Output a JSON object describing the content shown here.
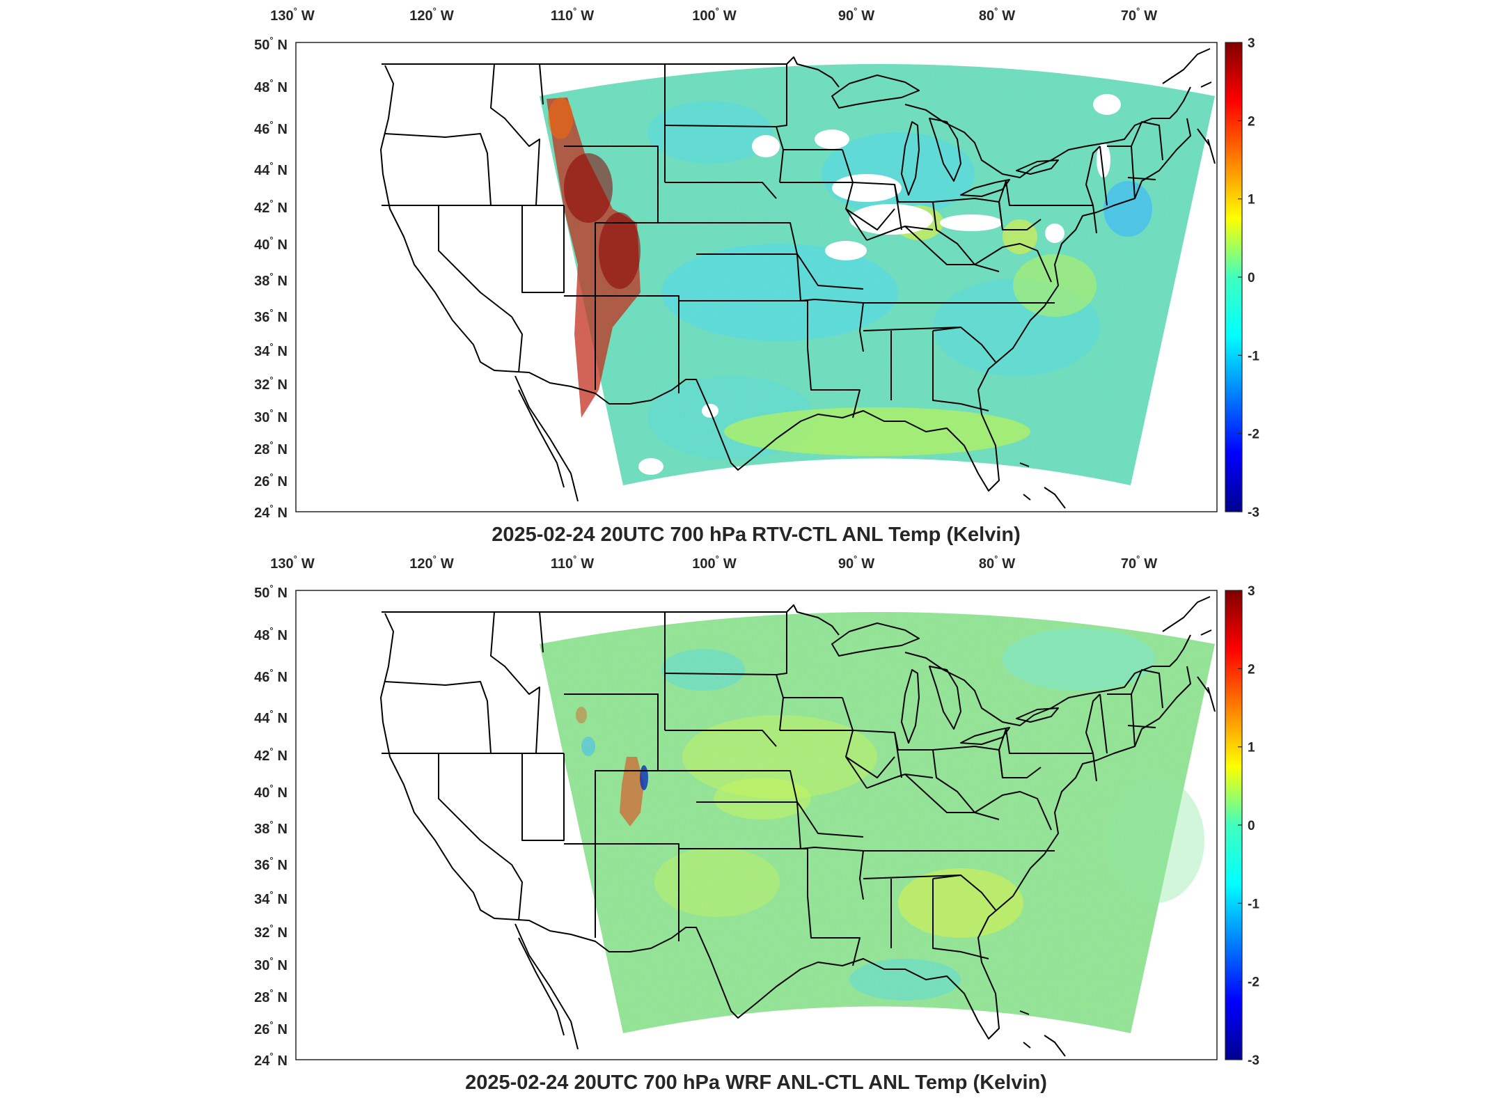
{
  "figure": {
    "panels": [
      {
        "id": "top",
        "title": "2025-02-24 20UTC 700 hPa RTV-CTL ANL Temp (Kelvin)",
        "colorbar": {
          "min": -3,
          "max": 3,
          "ticks": [
            "3",
            "2",
            "1",
            "0",
            "-1",
            "-2",
            "-3"
          ]
        }
      },
      {
        "id": "bottom",
        "title": "2025-02-24 20UTC 700 hPa WRF ANL-CTL ANL Temp (Kelvin)",
        "colorbar": {
          "min": -3,
          "max": 3,
          "ticks": [
            "3",
            "2",
            "1",
            "0",
            "-1",
            "-2",
            "-3"
          ]
        }
      }
    ],
    "lon_labels": [
      {
        "num": "130",
        "hemi": "W"
      },
      {
        "num": "120",
        "hemi": "W"
      },
      {
        "num": "110",
        "hemi": "W"
      },
      {
        "num": "100",
        "hemi": "W"
      },
      {
        "num": "90",
        "hemi": "W"
      },
      {
        "num": "80",
        "hemi": "W"
      },
      {
        "num": "70",
        "hemi": "W"
      }
    ],
    "lat_labels": [
      {
        "num": "50",
        "hemi": "N"
      },
      {
        "num": "48",
        "hemi": "N"
      },
      {
        "num": "46",
        "hemi": "N"
      },
      {
        "num": "44",
        "hemi": "N"
      },
      {
        "num": "42",
        "hemi": "N"
      },
      {
        "num": "40",
        "hemi": "N"
      },
      {
        "num": "38",
        "hemi": "N"
      },
      {
        "num": "36",
        "hemi": "N"
      },
      {
        "num": "34",
        "hemi": "N"
      },
      {
        "num": "32",
        "hemi": "N"
      },
      {
        "num": "30",
        "hemi": "N"
      },
      {
        "num": "28",
        "hemi": "N"
      },
      {
        "num": "26",
        "hemi": "N"
      },
      {
        "num": "24",
        "hemi": "N"
      }
    ],
    "degree_symbol": "°",
    "colormap": "jet",
    "colors": {
      "frame": "#262626",
      "coast": "#000000",
      "text": "#262626"
    }
  }
}
